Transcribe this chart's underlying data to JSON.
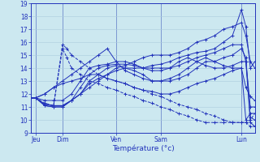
{
  "xlabel": "Température (°c)",
  "background_color": "#cce8f0",
  "grid_color": "#aaccdd",
  "line_color": "#2233bb",
  "ylim": [
    9,
    19
  ],
  "yticks": [
    9,
    10,
    11,
    12,
    13,
    14,
    15,
    16,
    17,
    18,
    19
  ],
  "xlim": [
    0,
    100
  ],
  "day_labels": [
    "Jeu",
    "Dim",
    "Ven",
    "Sam",
    "Lun"
  ],
  "day_x": [
    2,
    14,
    38,
    58,
    94
  ],
  "vline_x": [
    2,
    14,
    38,
    58,
    94
  ],
  "series": [
    {
      "pts": [
        [
          0,
          11.7
        ],
        [
          2,
          11.7
        ],
        [
          6,
          11.2
        ],
        [
          10,
          11.1
        ],
        [
          14,
          11.1
        ],
        [
          18,
          11.5
        ],
        [
          22,
          12.0
        ],
        [
          26,
          12.8
        ],
        [
          30,
          13.2
        ],
        [
          34,
          13.5
        ],
        [
          38,
          13.8
        ],
        [
          42,
          14.0
        ],
        [
          46,
          14.0
        ],
        [
          50,
          14.0
        ],
        [
          54,
          14.2
        ],
        [
          58,
          14.3
        ],
        [
          62,
          14.5
        ],
        [
          66,
          14.8
        ],
        [
          70,
          15.0
        ],
        [
          74,
          15.2
        ],
        [
          78,
          15.3
        ],
        [
          82,
          15.5
        ],
        [
          86,
          16.0
        ],
        [
          90,
          16.5
        ],
        [
          94,
          18.5
        ],
        [
          96,
          17.2
        ],
        [
          98,
          14.0
        ],
        [
          100,
          14.5
        ]
      ],
      "style": "solid"
    },
    {
      "pts": [
        [
          0,
          11.7
        ],
        [
          2,
          11.7
        ],
        [
          6,
          11.2
        ],
        [
          10,
          11.1
        ],
        [
          14,
          11.1
        ],
        [
          18,
          11.5
        ],
        [
          22,
          12.0
        ],
        [
          26,
          12.5
        ],
        [
          30,
          13.0
        ],
        [
          34,
          13.5
        ],
        [
          38,
          14.0
        ],
        [
          42,
          14.2
        ],
        [
          46,
          14.5
        ],
        [
          50,
          14.8
        ],
        [
          54,
          15.0
        ],
        [
          58,
          15.0
        ],
        [
          62,
          15.0
        ],
        [
          66,
          15.2
        ],
        [
          70,
          15.5
        ],
        [
          74,
          16.0
        ],
        [
          78,
          16.2
        ],
        [
          82,
          16.5
        ],
        [
          86,
          17.0
        ],
        [
          90,
          17.2
        ],
        [
          94,
          17.5
        ],
        [
          96,
          16.5
        ],
        [
          98,
          14.5
        ],
        [
          100,
          14.0
        ]
      ],
      "style": "solid"
    },
    {
      "pts": [
        [
          0,
          11.7
        ],
        [
          2,
          11.7
        ],
        [
          6,
          11.1
        ],
        [
          10,
          11.0
        ],
        [
          14,
          11.0
        ],
        [
          18,
          11.5
        ],
        [
          22,
          12.5
        ],
        [
          26,
          13.5
        ],
        [
          30,
          14.0
        ],
        [
          34,
          14.2
        ],
        [
          38,
          14.3
        ],
        [
          42,
          14.3
        ],
        [
          46,
          14.2
        ],
        [
          50,
          14.0
        ],
        [
          54,
          13.8
        ],
        [
          58,
          13.8
        ],
        [
          62,
          14.0
        ],
        [
          66,
          14.5
        ],
        [
          70,
          14.8
        ],
        [
          74,
          14.5
        ],
        [
          78,
          14.2
        ],
        [
          82,
          14.0
        ],
        [
          86,
          14.0
        ],
        [
          90,
          14.2
        ],
        [
          94,
          14.5
        ],
        [
          96,
          14.5
        ],
        [
          98,
          9.8
        ],
        [
          100,
          9.5
        ]
      ],
      "style": "solid"
    },
    {
      "pts": [
        [
          0,
          11.7
        ],
        [
          2,
          11.7
        ],
        [
          6,
          11.5
        ],
        [
          10,
          11.5
        ],
        [
          14,
          11.5
        ],
        [
          18,
          12.0
        ],
        [
          22,
          13.0
        ],
        [
          26,
          14.0
        ],
        [
          30,
          14.2
        ],
        [
          34,
          14.3
        ],
        [
          38,
          14.5
        ],
        [
          42,
          13.8
        ],
        [
          46,
          13.5
        ],
        [
          50,
          13.2
        ],
        [
          54,
          13.0
        ],
        [
          58,
          13.0
        ],
        [
          62,
          13.2
        ],
        [
          66,
          13.5
        ],
        [
          70,
          14.0
        ],
        [
          74,
          14.5
        ],
        [
          78,
          14.8
        ],
        [
          82,
          14.5
        ],
        [
          86,
          14.2
        ],
        [
          90,
          14.0
        ],
        [
          94,
          14.0
        ],
        [
          96,
          10.0
        ],
        [
          98,
          10.5
        ],
        [
          100,
          10.5
        ]
      ],
      "style": "solid"
    },
    {
      "pts": [
        [
          0,
          11.7
        ],
        [
          2,
          11.7
        ],
        [
          6,
          11.1
        ],
        [
          10,
          11.0
        ],
        [
          14,
          11.0
        ],
        [
          18,
          11.5
        ],
        [
          22,
          12.0
        ],
        [
          26,
          13.0
        ],
        [
          30,
          13.5
        ],
        [
          34,
          14.0
        ],
        [
          38,
          14.2
        ],
        [
          42,
          14.0
        ],
        [
          46,
          13.8
        ],
        [
          50,
          13.5
        ],
        [
          54,
          13.0
        ],
        [
          58,
          13.0
        ],
        [
          62,
          13.0
        ],
        [
          66,
          13.2
        ],
        [
          70,
          13.5
        ],
        [
          74,
          14.0
        ],
        [
          78,
          14.5
        ],
        [
          82,
          14.5
        ],
        [
          86,
          14.8
        ],
        [
          90,
          15.0
        ],
        [
          94,
          15.5
        ],
        [
          96,
          14.8
        ],
        [
          98,
          10.2
        ],
        [
          100,
          10.0
        ]
      ],
      "style": "solid"
    },
    {
      "pts": [
        [
          0,
          11.7
        ],
        [
          2,
          11.7
        ],
        [
          6,
          12.0
        ],
        [
          10,
          12.5
        ],
        [
          14,
          12.8
        ],
        [
          18,
          13.0
        ],
        [
          22,
          13.2
        ],
        [
          26,
          13.5
        ],
        [
          30,
          13.5
        ],
        [
          34,
          13.2
        ],
        [
          38,
          13.0
        ],
        [
          42,
          12.8
        ],
        [
          46,
          12.5
        ],
        [
          50,
          12.3
        ],
        [
          54,
          12.2
        ],
        [
          58,
          12.0
        ],
        [
          62,
          12.0
        ],
        [
          66,
          12.2
        ],
        [
          70,
          12.5
        ],
        [
          74,
          12.8
        ],
        [
          78,
          13.0
        ],
        [
          82,
          13.2
        ],
        [
          86,
          13.5
        ],
        [
          90,
          13.8
        ],
        [
          94,
          14.0
        ],
        [
          96,
          12.5
        ],
        [
          98,
          11.8
        ],
        [
          100,
          11.5
        ]
      ],
      "style": "solid"
    },
    {
      "pts": [
        [
          0,
          11.7
        ],
        [
          2,
          11.7
        ],
        [
          6,
          12.0
        ],
        [
          10,
          12.5
        ],
        [
          14,
          13.0
        ],
        [
          18,
          13.5
        ],
        [
          22,
          14.0
        ],
        [
          26,
          14.5
        ],
        [
          30,
          15.0
        ],
        [
          34,
          15.5
        ],
        [
          38,
          14.5
        ],
        [
          42,
          14.5
        ],
        [
          46,
          14.3
        ],
        [
          50,
          14.0
        ],
        [
          54,
          14.0
        ],
        [
          58,
          14.0
        ],
        [
          62,
          14.0
        ],
        [
          66,
          14.2
        ],
        [
          70,
          14.5
        ],
        [
          74,
          14.8
        ],
        [
          78,
          15.0
        ],
        [
          82,
          15.2
        ],
        [
          86,
          15.5
        ],
        [
          90,
          15.8
        ],
        [
          94,
          15.8
        ],
        [
          96,
          14.5
        ],
        [
          98,
          11.0
        ],
        [
          100,
          11.0
        ]
      ],
      "style": "solid"
    },
    {
      "pts": [
        [
          0,
          11.7
        ],
        [
          2,
          11.7
        ],
        [
          6,
          11.2
        ],
        [
          10,
          11.1
        ],
        [
          14,
          15.5
        ],
        [
          16,
          14.8
        ],
        [
          18,
          14.0
        ],
        [
          22,
          13.5
        ],
        [
          26,
          13.0
        ],
        [
          30,
          12.8
        ],
        [
          34,
          12.5
        ],
        [
          38,
          12.3
        ],
        [
          42,
          12.0
        ],
        [
          46,
          11.8
        ],
        [
          50,
          11.5
        ],
        [
          54,
          11.3
        ],
        [
          58,
          11.0
        ],
        [
          62,
          10.8
        ],
        [
          66,
          10.5
        ],
        [
          70,
          10.3
        ],
        [
          74,
          10.0
        ],
        [
          78,
          9.8
        ],
        [
          82,
          9.8
        ],
        [
          86,
          9.8
        ],
        [
          90,
          9.8
        ],
        [
          94,
          9.8
        ],
        [
          96,
          9.8
        ],
        [
          98,
          10.0
        ],
        [
          100,
          10.5
        ]
      ],
      "style": "dashed"
    },
    {
      "pts": [
        [
          0,
          11.7
        ],
        [
          2,
          11.7
        ],
        [
          6,
          11.3
        ],
        [
          10,
          11.1
        ],
        [
          14,
          15.8
        ],
        [
          16,
          15.5
        ],
        [
          18,
          15.0
        ],
        [
          22,
          14.5
        ],
        [
          26,
          14.0
        ],
        [
          30,
          13.5
        ],
        [
          34,
          13.2
        ],
        [
          38,
          13.0
        ],
        [
          42,
          12.8
        ],
        [
          46,
          12.5
        ],
        [
          50,
          12.3
        ],
        [
          54,
          12.0
        ],
        [
          58,
          11.8
        ],
        [
          62,
          11.5
        ],
        [
          66,
          11.2
        ],
        [
          70,
          11.0
        ],
        [
          74,
          10.8
        ],
        [
          78,
          10.5
        ],
        [
          82,
          10.3
        ],
        [
          86,
          10.0
        ],
        [
          90,
          9.8
        ],
        [
          94,
          9.8
        ],
        [
          96,
          9.8
        ],
        [
          98,
          9.5
        ],
        [
          100,
          9.5
        ]
      ],
      "style": "dashed"
    }
  ]
}
